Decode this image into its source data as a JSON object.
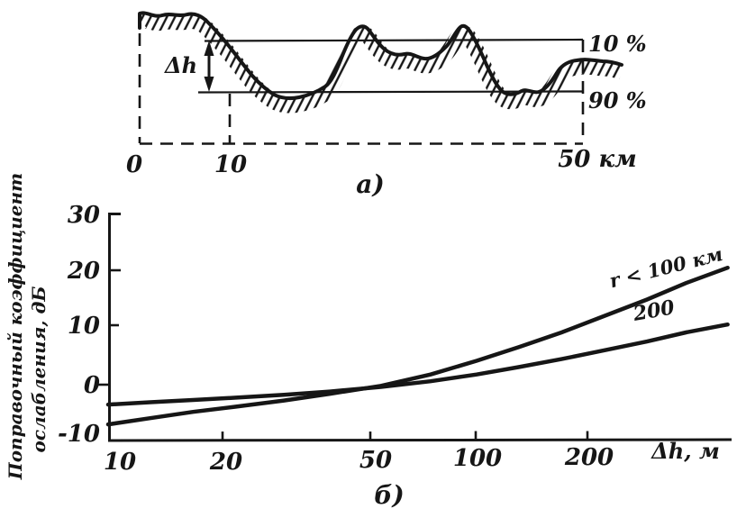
{
  "figure": {
    "background": "#ffffff",
    "ink": "#161616",
    "panel_a": {
      "caption": "а)"
    },
    "panel_b": {
      "caption": "б)"
    }
  },
  "chart_data": [
    {
      "type": "area",
      "panel": "а)",
      "description": "Профиль местности (штриховка): уровни высот, превышаемые в 10 % и 90 % точек профиля; Δh — неровность рельефа на интервале 0–50 км",
      "x_ticks": [
        "0",
        "10",
        "50 км"
      ],
      "x_range_km": [
        0,
        50
      ],
      "levels": {
        "top": "10 %",
        "bottom": "90 %"
      },
      "annotation": "Δh"
    },
    {
      "type": "line",
      "panel": "б)",
      "title": "",
      "xlabel": "Δh, м",
      "ylabel": "Поправочный коэффициент ослабления, дБ",
      "ylabel_lines": [
        "Поправочный коэффициент",
        "ослабления, дБ"
      ],
      "x_scale": "log",
      "xlim": [
        10,
        500
      ],
      "ylim": [
        -10,
        30
      ],
      "x_ticks": [
        10,
        20,
        50,
        100,
        200
      ],
      "y_ticks": [
        30,
        20,
        10,
        0,
        -10
      ],
      "grid": false,
      "legend_position": "on-curve",
      "series": [
        {
          "name": "r < 100 км",
          "x": [
            10,
            13,
            17,
            22,
            30,
            40,
            55,
            75,
            100,
            130,
            170,
            220,
            290,
            370,
            480
          ],
          "y": [
            -7.0,
            -5.9,
            -4.8,
            -3.9,
            -2.8,
            -1.6,
            -0.2,
            1.8,
            4.2,
            6.6,
            9.2,
            12.0,
            15.0,
            17.9,
            20.6
          ]
        },
        {
          "name": "200",
          "x": [
            10,
            13,
            17,
            22,
            30,
            40,
            55,
            75,
            100,
            130,
            170,
            220,
            290,
            370,
            480
          ],
          "y": [
            -3.5,
            -3.1,
            -2.7,
            -2.3,
            -1.8,
            -1.2,
            -0.4,
            0.6,
            1.8,
            3.1,
            4.5,
            6.0,
            7.6,
            9.2,
            10.6
          ]
        }
      ]
    }
  ]
}
